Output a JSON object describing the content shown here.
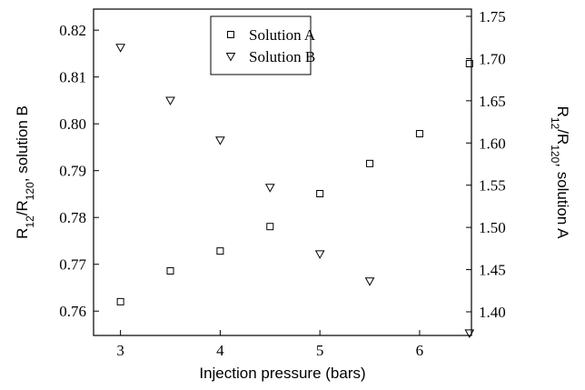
{
  "chart_data": {
    "type": "scatter",
    "xlabel": "Injection pressure (bars)",
    "ylabel": [
      "R",
      "12",
      "/R",
      "120",
      ", solution B"
    ],
    "y2label": [
      "R",
      "12",
      "/R",
      "120",
      ", solution A"
    ],
    "xlim": [
      2.73,
      6.52
    ],
    "xticks": [
      3,
      4,
      5,
      6
    ],
    "ylim": [
      0.7548,
      0.8245
    ],
    "yticks": [
      0.76,
      0.77,
      0.78,
      0.79,
      0.8,
      0.81,
      0.82
    ],
    "y2lim": [
      1.372,
      1.7586
    ],
    "y2ticks": [
      1.4,
      1.45,
      1.5,
      1.55,
      1.6,
      1.65,
      1.7,
      1.75
    ],
    "legend": "top",
    "series": [
      {
        "name": "Solution A",
        "color": "#000000",
        "marker": "square",
        "axis": "y2",
        "x": [
          3,
          3.5,
          4,
          4.5,
          5,
          5.5,
          6,
          6.5
        ],
        "values": [
          1.412,
          1.4485,
          1.472,
          1.501,
          1.54,
          1.5757,
          1.611,
          1.694
        ]
      },
      {
        "name": "Solution B",
        "color": "#000000",
        "marker": "triangle",
        "axis": "y",
        "x": [
          3,
          3.5,
          4,
          4.5,
          5,
          5.5,
          6.5
        ],
        "values": [
          0.8163,
          0.805,
          0.7965,
          0.7864,
          0.7722,
          0.7664,
          0.7553
        ]
      }
    ]
  }
}
